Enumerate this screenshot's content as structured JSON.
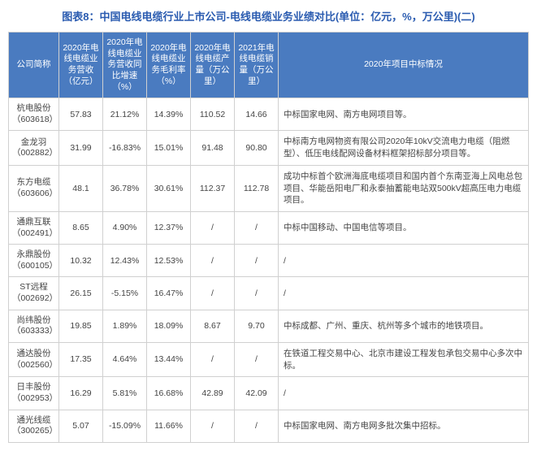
{
  "title": "图表8：中国电线电缆行业上市公司-电线电缆业务业绩对比(单位：亿元，%，万公里)(二)",
  "columns": [
    "公司简称",
    "2020年电线电缆业务营收（亿元）",
    "2020年电线电缆业务营收同比增速（%）",
    "2020年电线电缆业务毛利率（%）",
    "2020年电线电缆产量（万公里）",
    "2021年电线电缆销量（万公里）",
    "2020年项目中标情况"
  ],
  "rows": [
    {
      "company": "杭电股份（603618）",
      "revenue": "57.83",
      "growth": "21.12%",
      "margin": "14.39%",
      "output": "110.52",
      "sales": "14.66",
      "bids": "中标国家电网、南方电网项目等。"
    },
    {
      "company": "金龙羽（002882）",
      "revenue": "31.99",
      "growth": "-16.83%",
      "margin": "15.01%",
      "output": "91.48",
      "sales": "90.80",
      "bids": "中标南方电网物资有限公司2020年10kV交流电力电缆（阻燃型）、低压电线配网设备材料框架招标部分项目等。"
    },
    {
      "company": "东方电缆（603606）",
      "revenue": "48.1",
      "growth": "36.78%",
      "margin": "30.61%",
      "output": "112.37",
      "sales": "112.78",
      "bids": "成功中标首个欧洲海底电缆项目和国内首个东南亚海上风电总包项目、华能岳阳电厂和永泰抽蓄能电站双500kV超高压电力电缆项目。"
    },
    {
      "company": "通鼎互联（002491）",
      "revenue": "8.65",
      "growth": "4.90%",
      "margin": "12.37%",
      "output": "/",
      "sales": "/",
      "bids": "中标中国移动、中国电信等项目。"
    },
    {
      "company": "永鼎股份（600105）",
      "revenue": "10.32",
      "growth": "12.43%",
      "margin": "12.53%",
      "output": "/",
      "sales": "/",
      "bids": "/"
    },
    {
      "company": "ST远程（002692）",
      "revenue": "26.15",
      "growth": "-5.15%",
      "margin": "16.47%",
      "output": "/",
      "sales": "/",
      "bids": "/"
    },
    {
      "company": "尚纬股份（603333）",
      "revenue": "19.85",
      "growth": "1.89%",
      "margin": "18.09%",
      "output": "8.67",
      "sales": "9.70",
      "bids": "中标成都、广州、重庆、杭州等多个城市的地铁项目。"
    },
    {
      "company": "通达股份（002560）",
      "revenue": "17.35",
      "growth": "4.64%",
      "margin": "13.44%",
      "output": "/",
      "sales": "/",
      "bids": "在铁道工程交易中心、北京市建设工程发包承包交易中心多次中标。"
    },
    {
      "company": "日丰股份（002953）",
      "revenue": "16.29",
      "growth": "5.81%",
      "margin": "16.68%",
      "output": "42.89",
      "sales": "42.09",
      "bids": "/"
    },
    {
      "company": "通光线缆（300265）",
      "revenue": "5.07",
      "growth": "-15.09%",
      "margin": "11.66%",
      "output": "/",
      "sales": "/",
      "bids": "中标国家电网、南方电网多批次集中招标。"
    }
  ]
}
